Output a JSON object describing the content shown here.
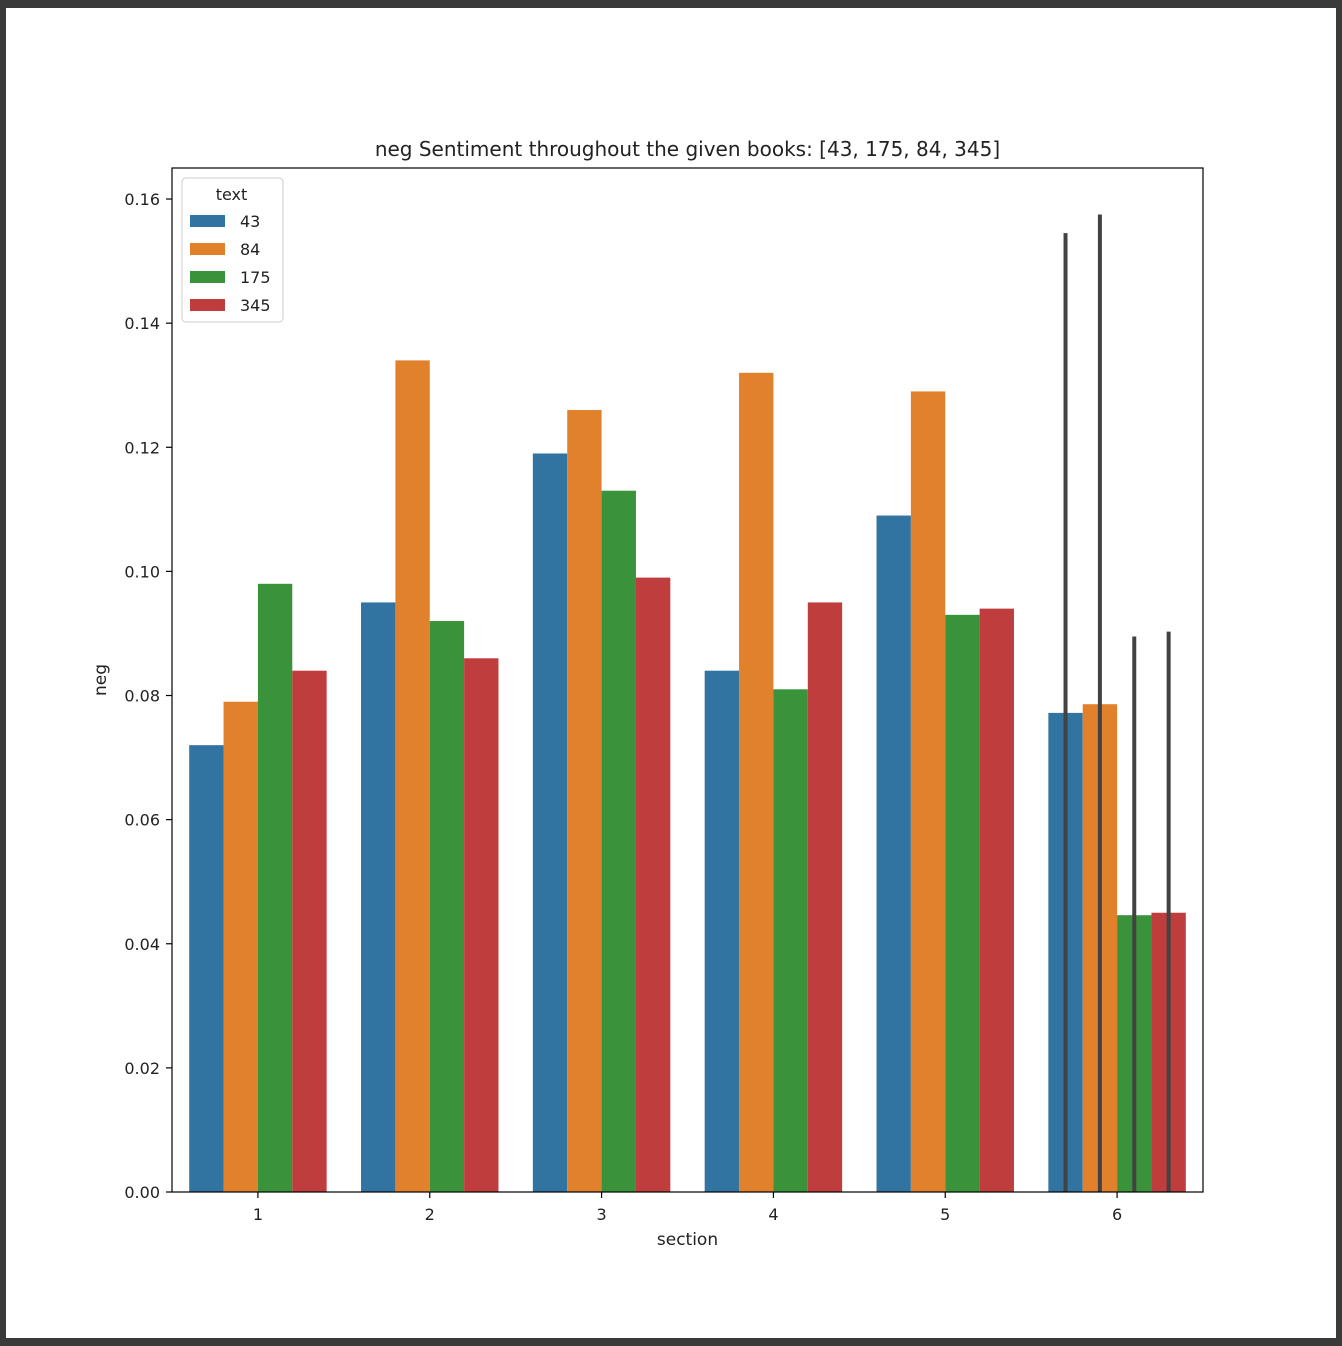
{
  "chart_data": {
    "type": "bar",
    "title": "neg Sentiment throughout the given books: [43, 175, 84, 345]",
    "xlabel": "section",
    "ylabel": "neg",
    "ylim": [
      0.0,
      0.165
    ],
    "yticks": [
      "0.00",
      "0.02",
      "0.04",
      "0.06",
      "0.08",
      "0.10",
      "0.12",
      "0.14",
      "0.16"
    ],
    "categories": [
      "1",
      "2",
      "3",
      "4",
      "5",
      "6"
    ],
    "legend": {
      "title": "text",
      "placement": "upper-left"
    },
    "series": [
      {
        "name": "43",
        "color": "#3274a1",
        "values": [
          0.072,
          0.095,
          0.119,
          0.084,
          0.109,
          0.0772
        ]
      },
      {
        "name": "84",
        "color": "#e1812c",
        "values": [
          0.079,
          0.134,
          0.126,
          0.132,
          0.129,
          0.0786
        ]
      },
      {
        "name": "175",
        "color": "#3a923a",
        "values": [
          0.098,
          0.092,
          0.113,
          0.081,
          0.093,
          0.0446
        ]
      },
      {
        "name": "345",
        "color": "#c03d3e",
        "values": [
          0.084,
          0.086,
          0.099,
          0.095,
          0.094,
          0.045
        ]
      }
    ],
    "error_bars": [
      {
        "series": "43",
        "category": "6",
        "low": 0.0,
        "high": 0.1545
      },
      {
        "series": "84",
        "category": "6",
        "low": 0.0,
        "high": 0.1575
      },
      {
        "series": "175",
        "category": "6",
        "low": 0.0,
        "high": 0.0895
      },
      {
        "series": "345",
        "category": "6",
        "low": 0.0,
        "high": 0.0903
      }
    ]
  }
}
